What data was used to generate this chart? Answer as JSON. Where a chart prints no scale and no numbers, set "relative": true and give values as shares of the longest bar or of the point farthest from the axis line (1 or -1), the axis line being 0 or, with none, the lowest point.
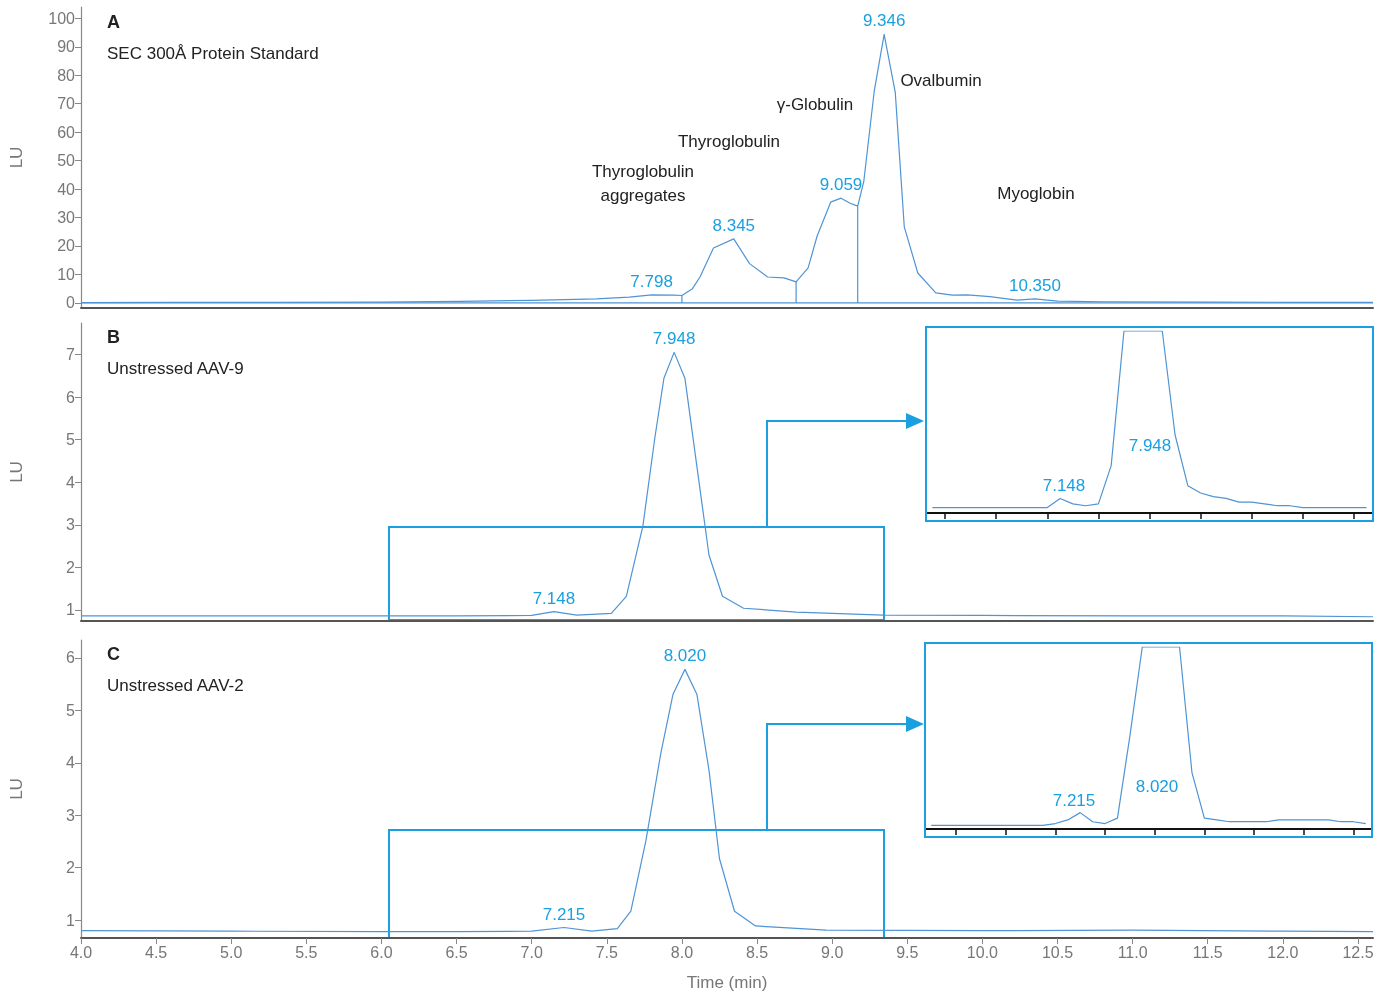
{
  "chart_data": [
    {
      "type": "line",
      "title": "A",
      "subtitle": "SEC 300Å Protein Standard",
      "ylabel": "LU",
      "xlim": [
        4,
        12.6
      ],
      "ylim": [
        -1.8,
        104
      ],
      "yticks": [
        0,
        10,
        20,
        30,
        40,
        50,
        60,
        70,
        80,
        90,
        100
      ],
      "tick_labels": "y",
      "series": [
        {
          "color": "#4f94d4",
          "x": [
            4.0,
            4.6,
            5.3,
            6.0,
            6.52,
            7.0,
            7.43,
            7.65,
            7.798,
            7.95,
            8.0,
            8.07,
            8.12,
            8.21,
            8.345,
            8.45,
            8.57,
            8.68,
            8.76,
            8.84,
            8.9,
            8.99,
            9.059,
            9.12,
            9.17,
            9.21,
            9.28,
            9.346,
            9.42,
            9.48,
            9.57,
            9.69,
            9.8,
            9.9,
            10.05,
            10.23,
            10.35,
            10.5,
            10.8,
            11.5,
            12.0,
            12.6
          ],
          "values": [
            0.1,
            0.2,
            0.2,
            0.3,
            0.5,
            0.9,
            1.4,
            2.0,
            2.8,
            2.7,
            2.6,
            5.0,
            9.1,
            19.3,
            22.5,
            13.8,
            9.1,
            8.8,
            7.4,
            12.3,
            23.5,
            35.4,
            36.8,
            35.0,
            34.0,
            42.5,
            74.4,
            94.4,
            74.0,
            26.7,
            10.5,
            3.5,
            2.7,
            2.8,
            2.2,
            1.0,
            1.4,
            0.6,
            0.4,
            0.3,
            0.2,
            0.2
          ]
        },
        {
          "color": "#4f94d4",
          "x": [
            4.0,
            12.6
          ],
          "values": [
            0,
            0
          ]
        },
        {
          "color": "#4f94d4",
          "x": [
            8.0,
            8.0
          ],
          "values": [
            0,
            2.6
          ]
        },
        {
          "color": "#4f94d4",
          "x": [
            8.76,
            8.76
          ],
          "values": [
            0,
            7.4
          ]
        },
        {
          "color": "#4f94d4",
          "x": [
            9.17,
            9.17
          ],
          "values": [
            0,
            34.0
          ]
        }
      ],
      "annotations": [
        "Thyroglobulin\naggregates",
        "Thyroglobulin",
        "γ-Globulin",
        "Ovalbumin",
        "Myoglobin",
        {
          "text": "7.798",
          "x": 7.798,
          "y": 2.8
        },
        {
          "text": "8.345",
          "x": 8.345,
          "y": 22.5
        },
        {
          "text": "9.059",
          "x": 9.059,
          "y": 36.8
        },
        {
          "text": "9.346",
          "x": 9.346,
          "y": 94.4
        },
        {
          "text": "10.350",
          "x": 10.35,
          "y": 1.4
        }
      ]
    },
    {
      "type": "line",
      "title": "B",
      "subtitle": "Unstressed AAV-9",
      "ylabel": "LU",
      "xlim": [
        4,
        12.6
      ],
      "ylim": [
        0.74,
        7.74
      ],
      "yticks": [
        1,
        2,
        3,
        4,
        5,
        6,
        7
      ],
      "tick_labels": "y",
      "series": [
        {
          "color": "#4f94d4",
          "x": [
            4.0,
            5.0,
            6.0,
            6.5,
            7.0,
            7.148,
            7.3,
            7.53,
            7.63,
            7.74,
            7.82,
            7.88,
            7.948,
            8.02,
            8.1,
            8.18,
            8.27,
            8.41,
            8.76,
            9.34,
            10.0,
            11.0,
            12.0,
            12.6
          ],
          "values": [
            0.86,
            0.86,
            0.86,
            0.86,
            0.87,
            0.96,
            0.88,
            0.92,
            1.32,
            2.97,
            5.05,
            6.44,
            7.05,
            6.44,
            4.36,
            2.29,
            1.32,
            1.04,
            0.95,
            0.88,
            0.87,
            0.86,
            0.86,
            0.84
          ]
        }
      ],
      "annotations": [
        {
          "text": "7.148",
          "x": 7.148,
          "y": 0.96
        },
        {
          "text": "7.948",
          "x": 7.948,
          "y": 7.05
        }
      ]
    },
    {
      "type": "line",
      "relative": true,
      "categories": [
        null,
        null,
        null,
        null,
        null,
        null,
        null,
        null,
        null,
        null,
        null,
        null,
        null,
        null,
        null,
        null,
        null,
        null,
        null,
        null,
        null,
        null,
        null,
        null,
        null,
        null,
        null,
        null,
        null,
        null,
        null,
        null,
        null,
        null,
        null
      ],
      "tick_labels": false,
      "series": [
        {
          "color": "#4f94d4",
          "values": [
            0.03,
            0.03,
            0.03,
            0.03,
            0.03,
            0.03,
            0.03,
            0.03,
            0.03,
            0.03,
            0.08,
            0.05,
            0.04,
            0.05,
            0.26,
            1,
            1,
            1,
            1,
            0.43,
            0.15,
            0.11,
            0.09,
            0.08,
            0.06,
            0.06,
            0.05,
            0.04,
            0.04,
            0.03,
            0.03,
            0.03,
            0.03,
            0.03,
            0.03
          ]
        }
      ],
      "annotations": [
        "7.948",
        "7.148"
      ]
    },
    {
      "type": "line",
      "title": "C",
      "subtitle": "Unstressed AAV-2",
      "ylabel": "LU",
      "xlabel": "Time (min)",
      "xlim": [
        4,
        12.6
      ],
      "ylim": [
        0.66,
        6.34
      ],
      "yticks": [
        1,
        2,
        3,
        4,
        5,
        6
      ],
      "xticks": [
        {
          "value": 4.0,
          "label": "4.0"
        },
        4.5,
        {
          "value": 5.0,
          "label": "5.0"
        },
        5.5,
        {
          "value": 6.0,
          "label": "6.0"
        },
        6.5,
        {
          "value": 7.0,
          "label": "7.0"
        },
        7.5,
        {
          "value": 8.0,
          "label": "8.0"
        },
        8.5,
        {
          "value": 9.0,
          "label": "9.0"
        },
        9.5,
        {
          "value": 10.0,
          "label": "10.0"
        },
        10.5,
        {
          "value": 11.0,
          "label": "11.0"
        },
        11.5,
        {
          "value": 12.0,
          "label": "12.0"
        },
        12.5
      ],
      "series": [
        {
          "color": "#4f94d4",
          "x": [
            4.0,
            5.0,
            6.0,
            6.5,
            7.0,
            7.215,
            7.4,
            7.57,
            7.66,
            7.76,
            7.86,
            7.94,
            8.02,
            8.1,
            8.18,
            8.25,
            8.35,
            8.49,
            8.96,
            10.0,
            11.0,
            12.0,
            12.6
          ],
          "values": [
            0.8,
            0.79,
            0.78,
            0.78,
            0.79,
            0.86,
            0.79,
            0.84,
            1.17,
            2.51,
            4.19,
            5.3,
            5.78,
            5.3,
            3.86,
            2.17,
            1.17,
            0.89,
            0.81,
            0.8,
            0.81,
            0.79,
            0.78
          ]
        }
      ],
      "annotations": [
        {
          "text": "7.215",
          "x": 7.215,
          "y": 0.86
        },
        {
          "text": "8.020",
          "x": 8.02,
          "y": 5.78
        }
      ]
    },
    {
      "type": "line",
      "relative": true,
      "categories": [
        null,
        null,
        null,
        null,
        null,
        null,
        null,
        null,
        null,
        null,
        null,
        null,
        null,
        null,
        null,
        null,
        null,
        null,
        null,
        null,
        null,
        null,
        null,
        null,
        null,
        null,
        null,
        null,
        null,
        null,
        null,
        null,
        null,
        null,
        null,
        null
      ],
      "tick_labels": false,
      "series": [
        {
          "color": "#4f94d4",
          "values": [
            0.02,
            0.02,
            0.02,
            0.02,
            0.02,
            0.02,
            0.02,
            0.02,
            0.02,
            0.02,
            0.03,
            0.05,
            0.09,
            0.04,
            0.03,
            0.06,
            0.51,
            1,
            1,
            1,
            1,
            0.31,
            0.06,
            0.05,
            0.04,
            0.04,
            0.04,
            0.04,
            0.05,
            0.05,
            0.05,
            0.05,
            0.05,
            0.04,
            0.04,
            0.03
          ]
        }
      ],
      "annotations": [
        "8.020",
        "7.215"
      ]
    }
  ]
}
